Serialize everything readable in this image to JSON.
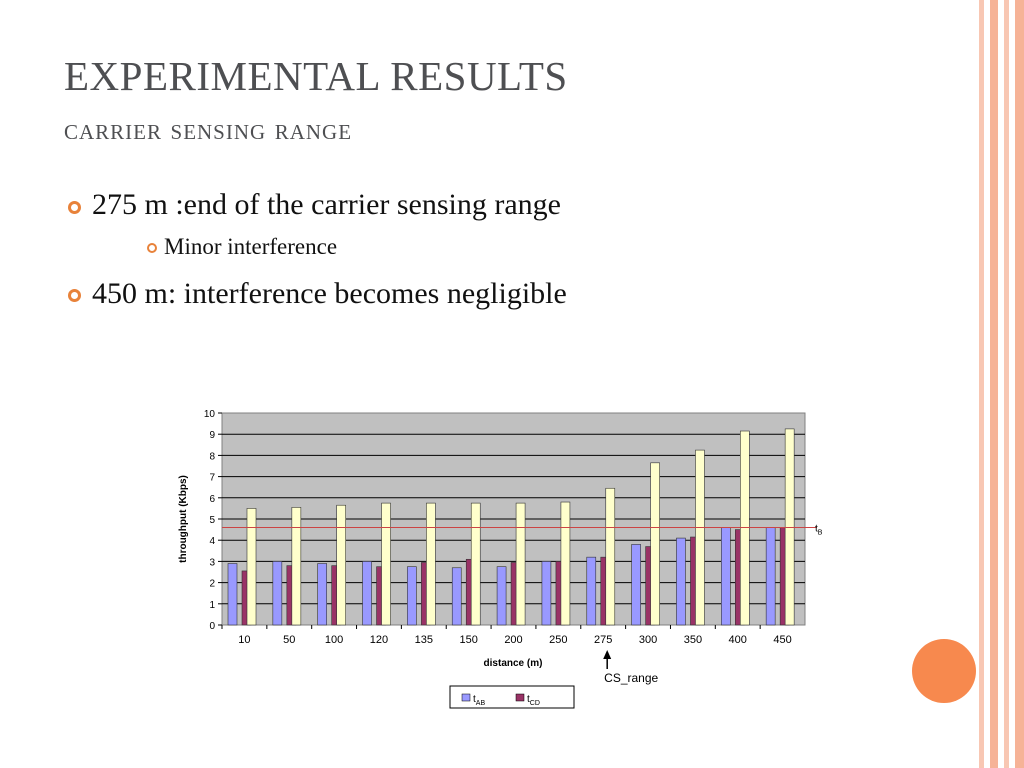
{
  "slide": {
    "title": "EXPERIMENTAL RESULTS",
    "subtitle": "carrier sensing range",
    "bullets": [
      {
        "text": "275 m :end of the carrier sensing range",
        "level": 1
      },
      {
        "text": "Minor interference",
        "level": 2
      },
      {
        "text": "450 m: interference becomes negligible",
        "level": 1
      }
    ]
  },
  "colors": {
    "title": "#4e4f52",
    "bullet_accent": "#e8823a",
    "decor_stripes": "#f5b8a0",
    "circle": "#f7894e",
    "plot_bg": "#c0c0c0",
    "series_AB": "#9999ff",
    "series_CD": "#993366",
    "series_ideal": "#ffffcc",
    "threshold_line": "#cc4444"
  },
  "chart_data": {
    "type": "bar",
    "categories": [
      "10",
      "50",
      "100",
      "120",
      "135",
      "150",
      "200",
      "250",
      "275",
      "300",
      "350",
      "400",
      "450"
    ],
    "series": [
      {
        "name": "t_AB",
        "values": [
          2.9,
          3.0,
          2.9,
          3.0,
          2.75,
          2.7,
          2.75,
          3.0,
          3.2,
          3.8,
          4.1,
          4.6,
          4.6
        ]
      },
      {
        "name": "t_CD",
        "values": [
          2.55,
          2.8,
          2.8,
          2.75,
          2.95,
          3.1,
          2.95,
          3.0,
          3.2,
          3.7,
          4.15,
          4.5,
          4.6
        ]
      },
      {
        "name": "",
        "values": [
          5.5,
          5.55,
          5.65,
          5.75,
          5.75,
          5.75,
          5.75,
          5.8,
          6.45,
          7.65,
          8.25,
          9.15,
          9.25
        ]
      }
    ],
    "xlabel": "distance (m)",
    "ylabel": "throughput (Kbps)",
    "ylim": [
      0,
      10
    ],
    "yticks": [
      0,
      1,
      2,
      3,
      4,
      5,
      6,
      7,
      8,
      9,
      10
    ],
    "threshold": {
      "value": 4.6,
      "label": "t_B"
    },
    "annotation": {
      "label": "CS_range",
      "category": "275"
    },
    "legend": {
      "position": "bottom",
      "entries": [
        "t_AB",
        "t_CD"
      ]
    },
    "grid": true
  }
}
